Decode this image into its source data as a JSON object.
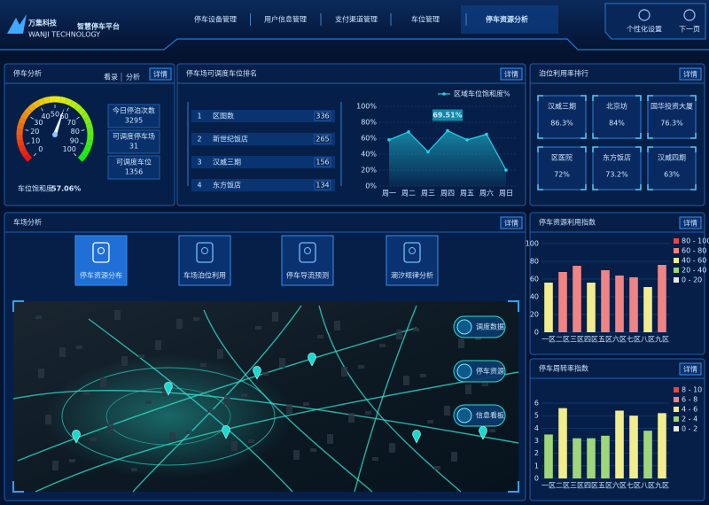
{
  "header": {
    "logo": "万集科技",
    "logo_sub": "WANJI TECHNOLOGY",
    "title": "智慧停车平台",
    "nav": [
      "停车设备管理",
      "用户信息管理",
      "支付渠道管理",
      "车位管理",
      "停车资源分析"
    ],
    "actions": [
      "个性化设置",
      "下一页"
    ]
  },
  "detail_button": "详情",
  "parking_analysis": {
    "title": "停车分析",
    "tabs": [
      "看录",
      "分析"
    ],
    "stats": [
      {
        "label": "今日停泊次数",
        "value": 3295
      },
      {
        "label": "可调度停车场",
        "value": 31
      },
      {
        "label": "可调度车位",
        "value": 1356
      }
    ]
  },
  "ranking": {
    "title": "停车场可调度车位排名",
    "items": [
      {
        "rank": 1,
        "name": "区图数",
        "value": 336
      },
      {
        "rank": 2,
        "name": "新世纪饭店",
        "value": 265
      },
      {
        "rank": 3,
        "name": "汉威三期",
        "value": 156
      },
      {
        "rank": 4,
        "name": "东方饭店",
        "value": 134
      }
    ]
  },
  "utilization": {
    "title": "泊位利用率排行",
    "items": [
      {
        "name": "汉威三期",
        "value": "86.3%"
      },
      {
        "name": "北京坊",
        "value": "84%"
      },
      {
        "name": "国华投资大厦",
        "value": "76.3%"
      },
      {
        "name": "区医院",
        "value": "72%"
      },
      {
        "name": "东方饭店",
        "value": "73.2%"
      },
      {
        "name": "汉威四期",
        "value": "63%"
      }
    ]
  },
  "lot_analysis": {
    "title": "车场分析",
    "tabs": [
      "停车资源分布",
      "车场泊位利用",
      "停车导流预测",
      "潮汐规律分析"
    ],
    "map_actions": [
      "调度数据",
      "停车资源",
      "信息看板"
    ]
  },
  "chart_data": [
    {
      "type": "gauge",
      "label": "车位饱和度",
      "value": 57.06,
      "value_label": "57.06%",
      "ylim": [
        0,
        100
      ],
      "yticks": [
        0,
        10,
        20,
        30,
        40,
        50,
        60,
        70,
        80,
        90,
        100
      ]
    },
    {
      "type": "line",
      "categories": [
        "周一",
        "周二",
        "周三",
        "周四",
        "周五",
        "周六",
        "周日"
      ],
      "series": [
        {
          "name": "区域车位饱和度%",
          "color": "#22d3e8",
          "values": [
            58,
            68,
            43,
            69.51,
            58,
            65,
            20
          ],
          "value_labels": [
            null,
            null,
            null,
            "69.51%",
            null,
            null,
            null
          ]
        }
      ],
      "ylim": [
        0,
        100
      ],
      "yticks": [
        {
          "value": 0,
          "label": "0%"
        },
        {
          "value": 20,
          "label": "20%"
        },
        {
          "value": 40,
          "label": "40%"
        },
        {
          "value": 60,
          "label": "60%"
        },
        {
          "value": 80,
          "label": "80%"
        },
        {
          "value": 100,
          "label": "100%"
        }
      ]
    },
    {
      "type": "bar",
      "title": "停车资源利用指数",
      "categories": [
        "一区",
        "二区",
        "三区",
        "四区",
        "五区",
        "六区",
        "七区",
        "八区",
        "九区"
      ],
      "values": [
        56,
        68,
        75,
        56,
        70,
        64,
        62,
        51,
        76
      ],
      "colors": [
        "#f2ec8c",
        "#f08484",
        "#f08484",
        "#f2ec8c",
        "#f08484",
        "#f08484",
        "#f08484",
        "#f2ec8c",
        "#f08484"
      ],
      "legend": [
        {
          "label": "80 - 100",
          "color": "#e84545"
        },
        {
          "label": "60 - 80",
          "color": "#f08484"
        },
        {
          "label": "40 - 60",
          "color": "#f2ec8c"
        },
        {
          "label": "20 - 40",
          "color": "#9fd67a"
        },
        {
          "label": "0 - 20",
          "color": "#e8e8e8"
        }
      ],
      "ylim": [
        0,
        100
      ],
      "yticks": [
        0,
        20,
        40,
        60,
        80,
        100
      ]
    },
    {
      "type": "bar",
      "title": "停车周转率指数",
      "categories": [
        "一区",
        "二区",
        "三区",
        "四区",
        "五区",
        "六区",
        "七区",
        "八区",
        "九区"
      ],
      "values": [
        3.5,
        5.6,
        3.2,
        3.2,
        3.4,
        5.4,
        5.0,
        3.8,
        5.2
      ],
      "colors": [
        "#9fd67a",
        "#f2ec8c",
        "#9fd67a",
        "#9fd67a",
        "#9fd67a",
        "#f2ec8c",
        "#f2ec8c",
        "#9fd67a",
        "#f2ec8c"
      ],
      "legend": [
        {
          "label": "8 - 10",
          "color": "#e84545"
        },
        {
          "label": "6 - 8",
          "color": "#f08484"
        },
        {
          "label": "4 - 6",
          "color": "#f2ec8c"
        },
        {
          "label": "2 - 4",
          "color": "#9fd67a"
        },
        {
          "label": "0 - 2",
          "color": "#e8e8e8"
        }
      ],
      "ylim": [
        0,
        6
      ],
      "yticks": [
        0,
        1,
        2,
        3,
        4,
        5,
        6
      ]
    }
  ]
}
